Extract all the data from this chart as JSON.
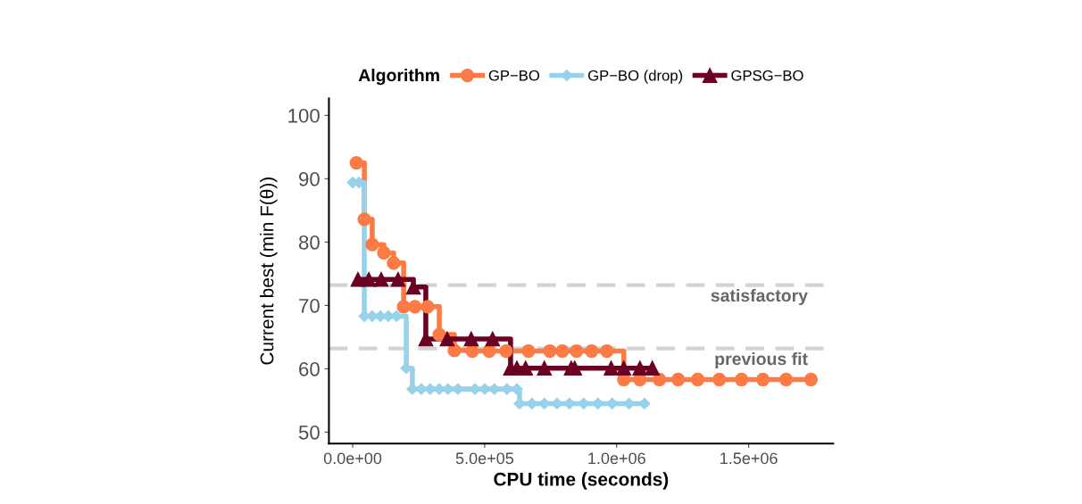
{
  "chart_data": {
    "type": "step",
    "xlabel": "CPU time (seconds)",
    "ylabel": "Current best (min F(θ))",
    "legend_title": "Algorithm",
    "legend": "top",
    "grid": false,
    "line_style": "solid",
    "xlim": [
      -90000,
      1820000
    ],
    "ylim": [
      48.2,
      102.7
    ],
    "xticks": [
      {
        "value": 0,
        "label": "0.0e+00"
      },
      {
        "value": 500000,
        "label": "5.0e+05"
      },
      {
        "value": 1000000,
        "label": "1.0e+06"
      },
      {
        "value": 1500000,
        "label": "1.5e+06"
      }
    ],
    "yticks": [
      50,
      60,
      70,
      80,
      90,
      100
    ],
    "ref_lines": [
      {
        "axis": "y",
        "value": 73.2,
        "label": "satisfactory",
        "color": "#d3d3d3",
        "line_style": "dashed"
      },
      {
        "axis": "y",
        "value": 63.2,
        "label": "previous fit",
        "color": "#d3d3d3",
        "line_style": "dashed"
      }
    ],
    "series": [
      {
        "name": "GP−BO",
        "color": "#fc7b45",
        "marker": "circle",
        "x": [
          14000,
          44000,
          74000,
          118000,
          155000,
          193000,
          236000,
          284000,
          328000,
          385000,
          453000,
          517000,
          581000,
          666000,
          747000,
          794000,
          848000,
          905000,
          963000,
          1027000,
          1088000,
          1162000,
          1233000,
          1307000,
          1389000,
          1473000,
          1554000,
          1642000,
          1736000
        ],
        "values": [
          92.5,
          83.6,
          79.6,
          78.3,
          76.7,
          69.8,
          69.8,
          69.8,
          65.4,
          62.9,
          62.8,
          62.8,
          62.8,
          62.8,
          62.8,
          62.8,
          62.8,
          62.8,
          62.8,
          58.3,
          58.3,
          58.3,
          58.3,
          58.3,
          58.3,
          58.3,
          58.3,
          58.3,
          58.3
        ]
      },
      {
        "name": "GP−BO (drop)",
        "color": "#98d1ea",
        "marker": "diamond",
        "x": [
          0,
          24000,
          44000,
          74000,
          105000,
          135000,
          166000,
          203000,
          226000,
          260000,
          294000,
          328000,
          361000,
          399000,
          463000,
          500000,
          537000,
          584000,
          622000,
          632000,
          679000,
          726000,
          774000,
          821000,
          875000,
          929000,
          983000,
          1047000,
          1105000
        ],
        "values": [
          89.4,
          89.4,
          68.3,
          68.3,
          68.3,
          68.3,
          68.3,
          60.1,
          56.8,
          56.8,
          56.8,
          56.8,
          56.8,
          56.8,
          56.8,
          56.8,
          56.8,
          56.8,
          56.8,
          54.5,
          54.5,
          54.5,
          54.5,
          54.5,
          54.5,
          54.5,
          54.5,
          54.5,
          54.5
        ]
      },
      {
        "name": "GPSG−BO",
        "color": "#6b0023",
        "marker": "triangle",
        "x": [
          20000,
          61000,
          108000,
          172000,
          230000,
          277000,
          358000,
          449000,
          530000,
          598000,
          622000,
          655000,
          726000,
          828000,
          841000,
          979000,
          1027000,
          1088000,
          1135000
        ],
        "values": [
          74.1,
          74.1,
          74.1,
          74.1,
          72.9,
          64.7,
          64.7,
          64.7,
          64.7,
          60.1,
          60.1,
          60.1,
          60.1,
          60.1,
          60.1,
          60.1,
          60.1,
          60.1,
          60.1
        ]
      }
    ]
  }
}
